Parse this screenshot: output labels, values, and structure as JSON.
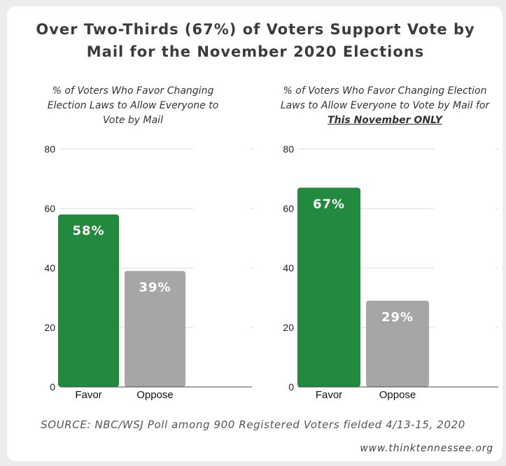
{
  "title": "Over Two-Thirds (67%) of Voters Support Vote by Mail for the November 2020 Elections",
  "source": "SOURCE: NBC/WSJ Poll among 900 Registered Voters fielded 4/13-15, 2020",
  "website": "www.thinktennessee.org",
  "colors": {
    "favor": "#23893f",
    "oppose": "#a6a6a6",
    "grid": "#d9d9d9",
    "axis": "#444444"
  },
  "chart_data": [
    {
      "type": "bar",
      "subtitle": "% of Voters Who Favor Changing Election Laws to Allow Everyone to Vote by Mail",
      "subtitle_emphasis": "",
      "categories": [
        "Favor",
        "Oppose"
      ],
      "values": [
        58,
        39
      ],
      "data_labels": [
        "58%",
        "39%"
      ],
      "ylim": [
        0,
        80
      ],
      "yticks": [
        "0",
        "20",
        "40",
        "60",
        "80"
      ],
      "grid": true
    },
    {
      "type": "bar",
      "subtitle": "% of Voters Who Favor Changing Election Laws to Allow Everyone to Vote by Mail for",
      "subtitle_emphasis": "This November ONLY",
      "categories": [
        "Favor",
        "Oppose"
      ],
      "values": [
        67,
        29
      ],
      "data_labels": [
        "67%",
        "29%"
      ],
      "ylim": [
        0,
        80
      ],
      "yticks": [
        "0",
        "20",
        "40",
        "60",
        "80"
      ],
      "grid": true
    }
  ]
}
